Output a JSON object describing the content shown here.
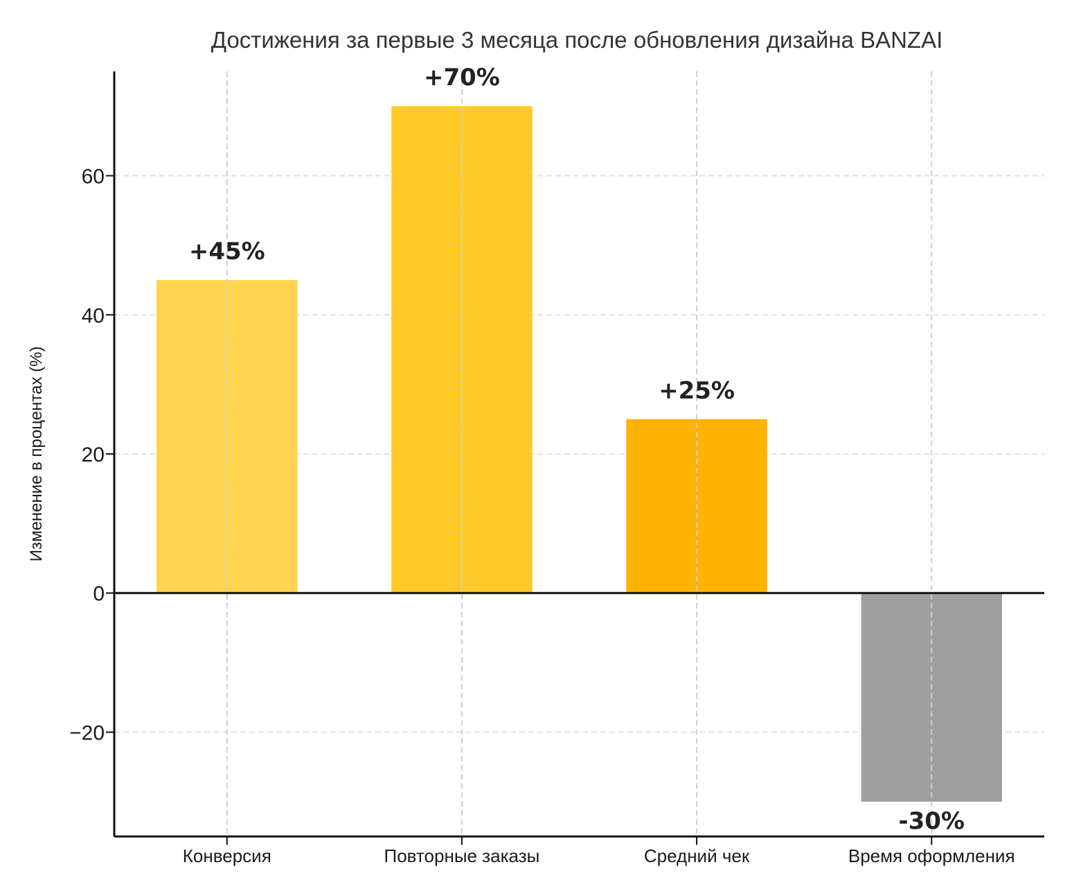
{
  "chart_data": {
    "type": "bar",
    "title": "Достижения за первые 3 месяца после обновления дизайна BANZAI",
    "xlabel": "",
    "ylabel": "Изменение в процентах (%)",
    "categories": [
      "Конверсия",
      "Повторные заказы",
      "Средний чек",
      "Время оформления"
    ],
    "values": [
      45,
      70,
      25,
      -30
    ],
    "data_labels": [
      "+45%",
      "+70%",
      "+25%",
      "-30%"
    ],
    "colors": [
      "#FFD54F",
      "#FFCA28",
      "#FFB300",
      "#9E9E9E"
    ],
    "ylim": [
      -35,
      75
    ],
    "yticks": [
      -20,
      0,
      20,
      40,
      60
    ],
    "ytick_labels": [
      "−20",
      "0",
      "20",
      "40",
      "60"
    ],
    "grid": true,
    "zero_line": true
  }
}
